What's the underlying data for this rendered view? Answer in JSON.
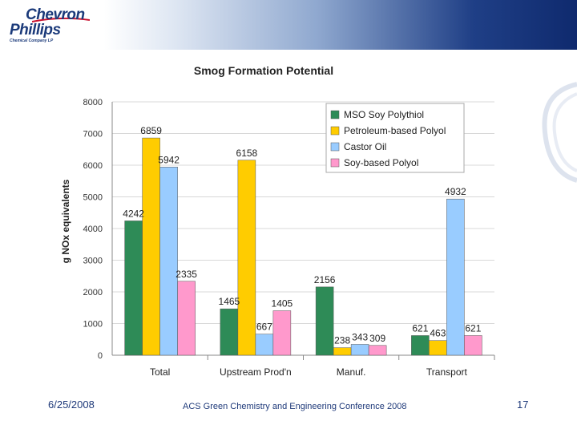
{
  "logo": {
    "line1": "Chevron",
    "line2": "Phillips",
    "line3": "Chemical Company LP"
  },
  "footer": {
    "date": "6/25/2008",
    "conference": "ACS Green Chemistry and Engineering Conference 2008",
    "page": "17"
  },
  "colors": {
    "top_band_dark": "#0f2a6e",
    "text_blue": "#1f3a7a"
  },
  "chart_data": {
    "type": "bar",
    "title": "Smog Formation Potential",
    "xlabel": "",
    "ylabel": "g NOx equivalents",
    "ylim": [
      0,
      8000
    ],
    "yticks": [
      0,
      1000,
      2000,
      3000,
      4000,
      5000,
      6000,
      7000,
      8000
    ],
    "grid": true,
    "legend_position": "top-right",
    "categories": [
      "Total",
      "Upstream Prod'n",
      "Manuf.",
      "Transport"
    ],
    "series": [
      {
        "name": "MSO Soy Polythiol",
        "color": "#2e8b57",
        "values": [
          4242,
          1465,
          2156,
          621
        ]
      },
      {
        "name": "Petroleum-based Polyol",
        "color": "#ffcc00",
        "values": [
          6859,
          6158,
          238,
          463
        ]
      },
      {
        "name": "Castor Oil",
        "color": "#99ccff",
        "values": [
          5942,
          667,
          343,
          4932
        ]
      },
      {
        "name": "Soy-based Polyol",
        "color": "#ff99cc",
        "values": [
          2335,
          1405,
          309,
          621
        ]
      }
    ]
  }
}
